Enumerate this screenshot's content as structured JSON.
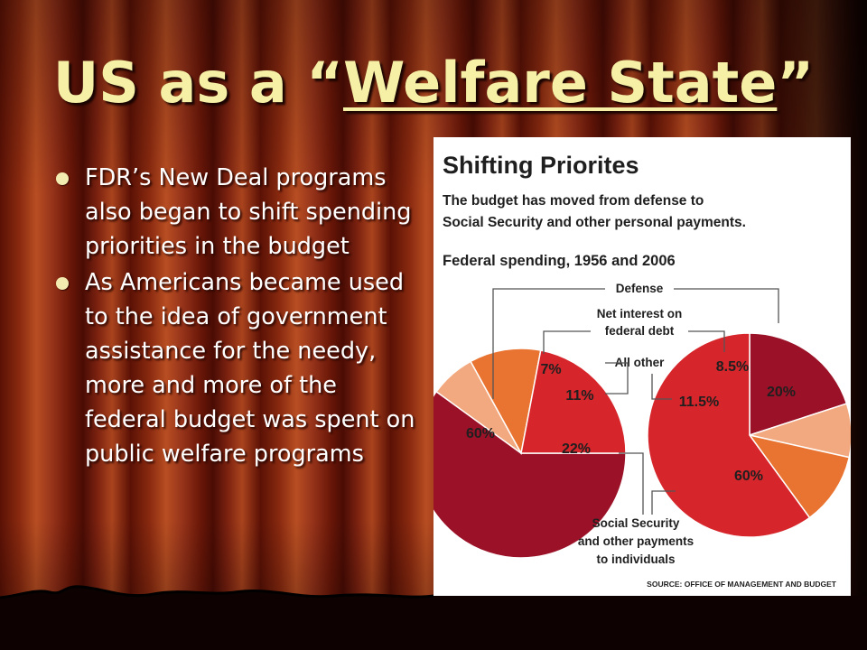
{
  "slide": {
    "title_prefix": "US as a “",
    "title_emph": "Welfare State",
    "title_suffix": "”",
    "bullets": [
      "FDR’s New Deal programs also began to shift spending priorities in the budget",
      "As Americans became used to the idea of government assistance for the needy, more and more of the federal budget was spent on public welfare programs"
    ]
  },
  "colors": {
    "title": "#f6efa6",
    "bullet_text": "#ffffff",
    "defense": "#9b1228",
    "social_security": "#d6262b",
    "all_other": "#e97330",
    "net_interest": "#f3a97f"
  },
  "chart_data": {
    "type": "pie",
    "title": "Shifting Priorites",
    "subtitle": "The budget has moved from defense to Social Security and other personal payments.",
    "heading": "Federal spending, 1956 and 2006",
    "source": "SOURCE: OFFICE OF MANAGEMENT AND BUDGET",
    "categories": [
      "Defense",
      "Net interest on federal debt",
      "All other",
      "Social Security and other payments to individuals"
    ],
    "category_labels": {
      "defense": "Defense",
      "net_interest": "Net interest on federal debt",
      "all_other": "All other",
      "social_security": "Social Security and other payments to individuals"
    },
    "series": [
      {
        "name": "1956",
        "values": [
          60,
          7,
          11,
          22
        ],
        "labels": [
          "60%",
          "7%",
          "11%",
          "22%"
        ]
      },
      {
        "name": "2006",
        "values": [
          20,
          8.5,
          11.5,
          60
        ],
        "labels": [
          "20%",
          "8.5%",
          "11.5%",
          "60%"
        ]
      }
    ]
  }
}
